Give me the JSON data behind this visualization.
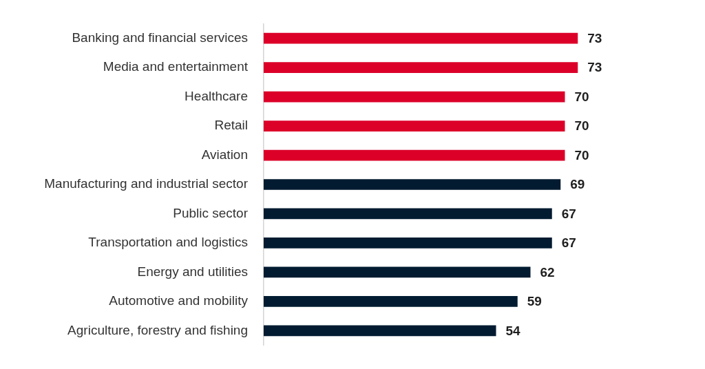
{
  "chart_data": {
    "type": "bar",
    "orientation": "horizontal",
    "categories": [
      "Banking and financial services",
      "Media and entertainment",
      "Healthcare",
      "Retail",
      "Aviation",
      "Manufacturing and industrial sector",
      "Public sector",
      "Transportation and logistics",
      "Energy and utilities",
      "Automotive and mobility",
      "Agriculture, forestry and fishing"
    ],
    "values": [
      73,
      73,
      70,
      70,
      70,
      69,
      67,
      67,
      62,
      59,
      54
    ],
    "colors": [
      "#dc0029",
      "#dc0029",
      "#dc0029",
      "#dc0029",
      "#dc0029",
      "#021b30",
      "#021b30",
      "#021b30",
      "#021b30",
      "#021b30",
      "#021b30"
    ],
    "data_labels": true
  }
}
